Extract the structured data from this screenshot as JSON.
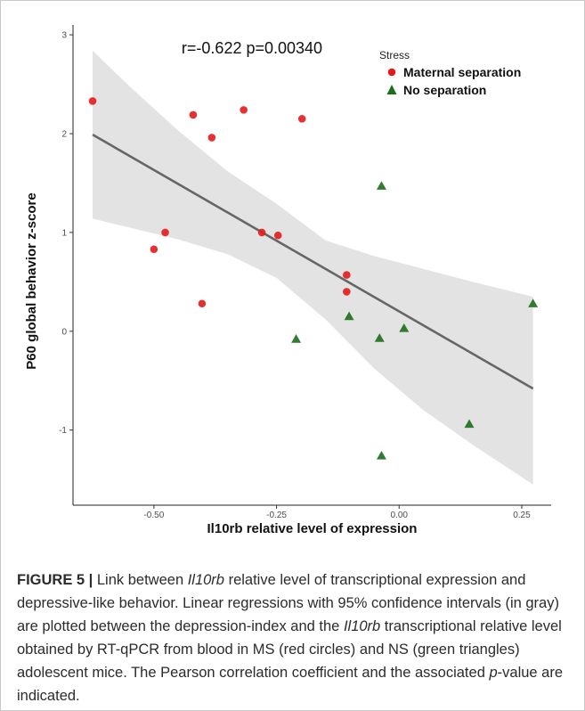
{
  "chart_data": {
    "type": "scatter",
    "xlabel": "Il10rb relative level of expression",
    "ylabel": "P60 global behavior z-score",
    "xlim": [
      -0.665,
      0.31
    ],
    "ylim": [
      -1.76,
      3.1
    ],
    "xticks": [
      -0.5,
      -0.25,
      0.0,
      0.25
    ],
    "xtick_labels": [
      "-0.50",
      "-0.25",
      "0.00",
      "0.25"
    ],
    "yticks": [
      3,
      2,
      1,
      0,
      -1
    ],
    "ytick_labels": [
      "3",
      "2",
      "1",
      "0",
      "-1"
    ],
    "annotation": "r=-0.622  p=0.00340",
    "grid": false,
    "legend": {
      "title": "Stress",
      "position": "top-right",
      "entries": [
        {
          "label": "Maternal separation",
          "marker": "circle",
          "color": "#e41a1c"
        },
        {
          "label": "No separation",
          "marker": "triangle",
          "color": "#1b6e1b"
        }
      ]
    },
    "series": [
      {
        "name": "Maternal separation",
        "marker": "circle",
        "color": "#e41a1c",
        "x": [
          -0.625,
          -0.5,
          -0.477,
          -0.42,
          -0.402,
          -0.382,
          -0.317,
          -0.28,
          -0.247,
          -0.198,
          -0.107,
          -0.107
        ],
        "y": [
          2.33,
          0.83,
          1.0,
          2.19,
          0.28,
          1.96,
          2.24,
          1.0,
          0.97,
          2.15,
          0.57,
          0.4
        ]
      },
      {
        "name": "No separation",
        "marker": "triangle",
        "color": "#1b6e1b",
        "x": [
          -0.21,
          -0.102,
          -0.04,
          -0.036,
          -0.036,
          0.01,
          0.143,
          0.273
        ],
        "y": [
          -0.08,
          0.15,
          -0.07,
          1.47,
          -1.26,
          0.03,
          -0.94,
          0.28
        ]
      }
    ],
    "regression": {
      "x": [
        -0.625,
        0.273
      ],
      "y": [
        1.99,
        -0.58
      ],
      "color": "#666666"
    },
    "confidence_band": {
      "level": "95%",
      "color": "#d9d9d9",
      "x": [
        -0.625,
        -0.55,
        -0.45,
        -0.35,
        -0.25,
        -0.15,
        -0.05,
        0.05,
        0.15,
        0.273
      ],
      "upper": [
        2.84,
        2.48,
        2.03,
        1.62,
        1.29,
        0.92,
        0.76,
        0.63,
        0.5,
        0.35
      ],
      "lower": [
        1.14,
        1.05,
        0.93,
        0.78,
        0.54,
        0.12,
        -0.38,
        -0.8,
        -1.15,
        -1.55
      ]
    }
  },
  "caption": {
    "label": "FIGURE 5 |",
    "segments": [
      {
        "text": " Link between ",
        "italic": false
      },
      {
        "text": "Il10rb",
        "italic": true
      },
      {
        "text": " relative level of transcriptional expression and depressive-like behavior. Linear regressions with 95% confidence intervals (in gray) are plotted between the depression-index and the ",
        "italic": false
      },
      {
        "text": "Il10rb",
        "italic": true
      },
      {
        "text": " transcriptional relative level obtained by RT-qPCR from blood in MS (red circles) and NS (green triangles) adolescent mice. The Pearson correlation coefficient and the associated ",
        "italic": false
      },
      {
        "text": "p",
        "italic": true
      },
      {
        "text": "-value are indicated.",
        "italic": false
      }
    ]
  }
}
